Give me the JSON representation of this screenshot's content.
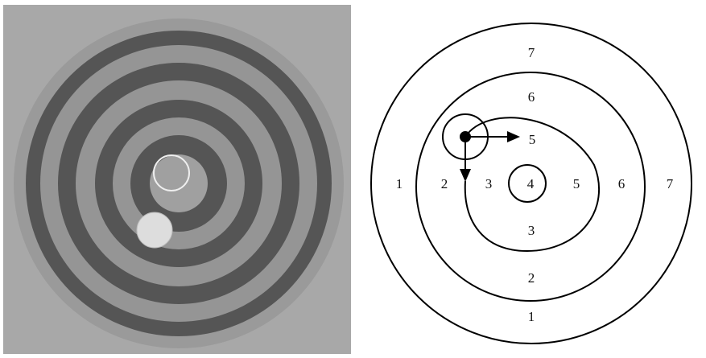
{
  "diagram": {
    "labels": [
      "7",
      "6",
      "5",
      "1",
      "2",
      "3",
      "4",
      "5",
      "6",
      "7",
      "3",
      "2",
      "1"
    ]
  }
}
